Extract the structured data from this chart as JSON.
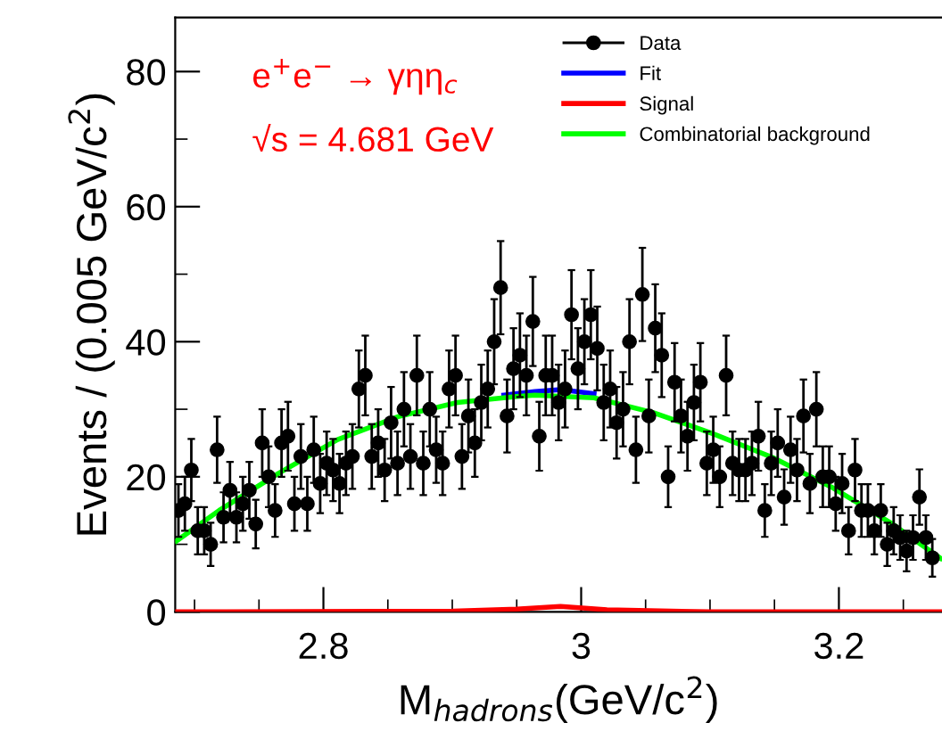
{
  "chart_data": {
    "type": "scatter",
    "xlabel": "M$_{hadrons}$(GeV/c$^{2}$)",
    "ylabel": "Events / (0.005 GeV/c$^{2}$)",
    "annotations": [
      "e$^{+}$e$^{−}$ → γηη$_{c}$",
      "√s = 4.681 GeV"
    ],
    "xlim": [
      2.685,
      3.28
    ],
    "ylim": [
      0,
      88
    ],
    "xticks": [
      {
        "value": 2.7,
        "label": null
      },
      {
        "value": 2.75,
        "label": null
      },
      2.8,
      {
        "value": 2.85,
        "label": null
      },
      {
        "value": 2.9,
        "label": null
      },
      {
        "value": 2.95,
        "label": null
      },
      3,
      {
        "value": 3.05,
        "label": null
      },
      {
        "value": 3.1,
        "label": null
      },
      {
        "value": 3.15,
        "label": null
      },
      3.2,
      {
        "value": 3.25,
        "label": null
      }
    ],
    "yticks": [
      0,
      {
        "value": 10,
        "label": null
      },
      20,
      {
        "value": 30,
        "label": null
      },
      40,
      {
        "value": 50,
        "label": null
      },
      60,
      {
        "value": 70,
        "label": null
      },
      80
    ],
    "legend": "top right",
    "grid": false,
    "series": [
      {
        "name": "Data",
        "color": "#000000",
        "marker": "circle",
        "x": [
          2.6875,
          2.6925,
          2.6975,
          2.7025,
          2.7075,
          2.7125,
          2.7175,
          2.7225,
          2.7275,
          2.7325,
          2.7375,
          2.7425,
          2.7475,
          2.7525,
          2.7575,
          2.7625,
          2.7675,
          2.7725,
          2.7775,
          2.7825,
          2.7875,
          2.7925,
          2.7975,
          2.8025,
          2.8075,
          2.8125,
          2.8175,
          2.8225,
          2.8275,
          2.8325,
          2.8375,
          2.8425,
          2.8475,
          2.8525,
          2.8575,
          2.8625,
          2.8675,
          2.8725,
          2.8775,
          2.8825,
          2.8875,
          2.8925,
          2.8975,
          2.9025,
          2.9075,
          2.9125,
          2.9175,
          2.9225,
          2.9275,
          2.9325,
          2.9375,
          2.9425,
          2.9475,
          2.9525,
          2.9575,
          2.9625,
          2.9675,
          2.9725,
          2.9775,
          2.9825,
          2.9875,
          2.9925,
          2.9975,
          3.0025,
          3.0075,
          3.0125,
          3.0175,
          3.0225,
          3.0275,
          3.0325,
          3.0375,
          3.0425,
          3.0475,
          3.0525,
          3.0575,
          3.0625,
          3.0675,
          3.0725,
          3.0775,
          3.0825,
          3.0875,
          3.0925,
          3.0975,
          3.1025,
          3.1075,
          3.1125,
          3.1175,
          3.1225,
          3.1275,
          3.1325,
          3.1375,
          3.1425,
          3.1475,
          3.1525,
          3.1575,
          3.1625,
          3.1675,
          3.1725,
          3.1775,
          3.1825,
          3.1875,
          3.1925,
          3.1975,
          3.2025,
          3.2075,
          3.2125,
          3.2175,
          3.2225,
          3.2275,
          3.2325,
          3.2375,
          3.2425,
          3.2475,
          3.2525,
          3.2575,
          3.2625,
          3.2675,
          3.2725
        ],
        "values": [
          15,
          16,
          21,
          12,
          12,
          10,
          24,
          14,
          18,
          14,
          16,
          18,
          13,
          25,
          20,
          15,
          25,
          26,
          16,
          23,
          16,
          24,
          19,
          22,
          21,
          19,
          22,
          23,
          33,
          35,
          23,
          25,
          21,
          28,
          22,
          30,
          23,
          35,
          22,
          30,
          24,
          22,
          33,
          35,
          23,
          29,
          25,
          31,
          33,
          40,
          48,
          29,
          36,
          38,
          35,
          43,
          26,
          35,
          35,
          31,
          33,
          44,
          36,
          40,
          44,
          39,
          31,
          33,
          28,
          30,
          40,
          24,
          47,
          29,
          42,
          38,
          20,
          34,
          29,
          26,
          31,
          34,
          22,
          24,
          20,
          35,
          22,
          21,
          21,
          22,
          26,
          15,
          22,
          25,
          17,
          24,
          21,
          29,
          19,
          30,
          20,
          20,
          16,
          19,
          12,
          21,
          15,
          15,
          12,
          15,
          10,
          12,
          11,
          9,
          11,
          17,
          11,
          8
        ],
        "errors": [
          3.9,
          4,
          4.6,
          3.5,
          3.5,
          3.2,
          4.9,
          3.7,
          4.2,
          3.7,
          4,
          4.2,
          3.6,
          5,
          4.5,
          3.9,
          5,
          5.1,
          4,
          4.8,
          4,
          4.9,
          4.4,
          4.7,
          4.6,
          4.4,
          4.7,
          4.8,
          5.7,
          5.9,
          4.8,
          5,
          4.6,
          5.3,
          4.7,
          5.5,
          4.8,
          5.9,
          4.7,
          5.5,
          4.9,
          4.7,
          5.7,
          5.9,
          4.8,
          5.4,
          5,
          5.6,
          5.7,
          6.3,
          6.9,
          5.4,
          6,
          6.2,
          5.9,
          6.6,
          5.1,
          5.9,
          5.9,
          5.6,
          5.7,
          6.6,
          6,
          6.3,
          6.6,
          6.2,
          5.6,
          5.7,
          5.3,
          5.5,
          6.3,
          4.9,
          6.9,
          5.4,
          6.5,
          6.2,
          4.5,
          5.8,
          5.4,
          5.1,
          5.6,
          5.8,
          4.7,
          4.9,
          4.5,
          5.9,
          4.7,
          4.6,
          4.6,
          4.7,
          5.1,
          3.9,
          4.7,
          5,
          4.1,
          4.9,
          4.6,
          5.4,
          4.4,
          5.5,
          4.5,
          4.5,
          4,
          4.4,
          3.5,
          4.6,
          3.9,
          3.9,
          3.5,
          3.9,
          3.2,
          3.5,
          3.3,
          3,
          3.3,
          4.1,
          3.3,
          2.8
        ]
      },
      {
        "name": "Fit",
        "type": "line",
        "color": "#0000ff",
        "x": [
          2.94,
          2.964,
          2.984,
          3.01
        ],
        "values": [
          32.1,
          32.6,
          32.9,
          32.3
        ]
      },
      {
        "name": "Signal",
        "type": "line",
        "color": "#ff0000",
        "x": [
          2.686,
          2.9,
          2.95,
          2.984,
          3.02,
          3.1,
          3.279
        ],
        "values": [
          0,
          0.1,
          0.4,
          0.8,
          0.3,
          0,
          0
        ]
      },
      {
        "name": "Combinatorial background",
        "type": "line",
        "color": "#00ff00",
        "x": [
          2.686,
          2.719,
          2.765,
          2.811,
          2.858,
          2.904,
          2.95,
          2.964,
          3.01,
          3.056,
          3.102,
          3.148,
          3.194,
          3.24,
          3.279
        ],
        "values": [
          10.5,
          15.0,
          20.5,
          25.5,
          28.9,
          31.0,
          31.9,
          32.1,
          31.7,
          29.5,
          26.4,
          22.9,
          18.5,
          13.2,
          7.9
        ]
      }
    ]
  }
}
